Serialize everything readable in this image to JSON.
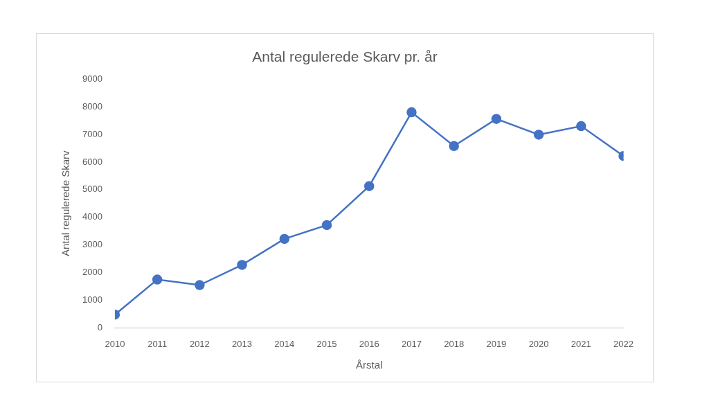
{
  "chart_data": {
    "type": "line",
    "title": "Antal regulerede Skarv pr. år",
    "x_label": "Årstal",
    "y_label": "Antal regulerede Skarv",
    "categories": [
      "2010",
      "2011",
      "2012",
      "2013",
      "2014",
      "2015",
      "2016",
      "2017",
      "2018",
      "2019",
      "2020",
      "2021",
      "2022"
    ],
    "values": [
      480,
      1750,
      1550,
      2280,
      3220,
      3720,
      5130,
      7800,
      6580,
      7560,
      6990,
      7300,
      6220
    ],
    "color": "#4472c4",
    "marker": "circle",
    "line_style": "solid",
    "ylim": [
      0,
      9000
    ],
    "yticks": [
      0,
      1000,
      2000,
      3000,
      4000,
      5000,
      6000,
      7000,
      8000,
      9000
    ],
    "grid": false
  }
}
